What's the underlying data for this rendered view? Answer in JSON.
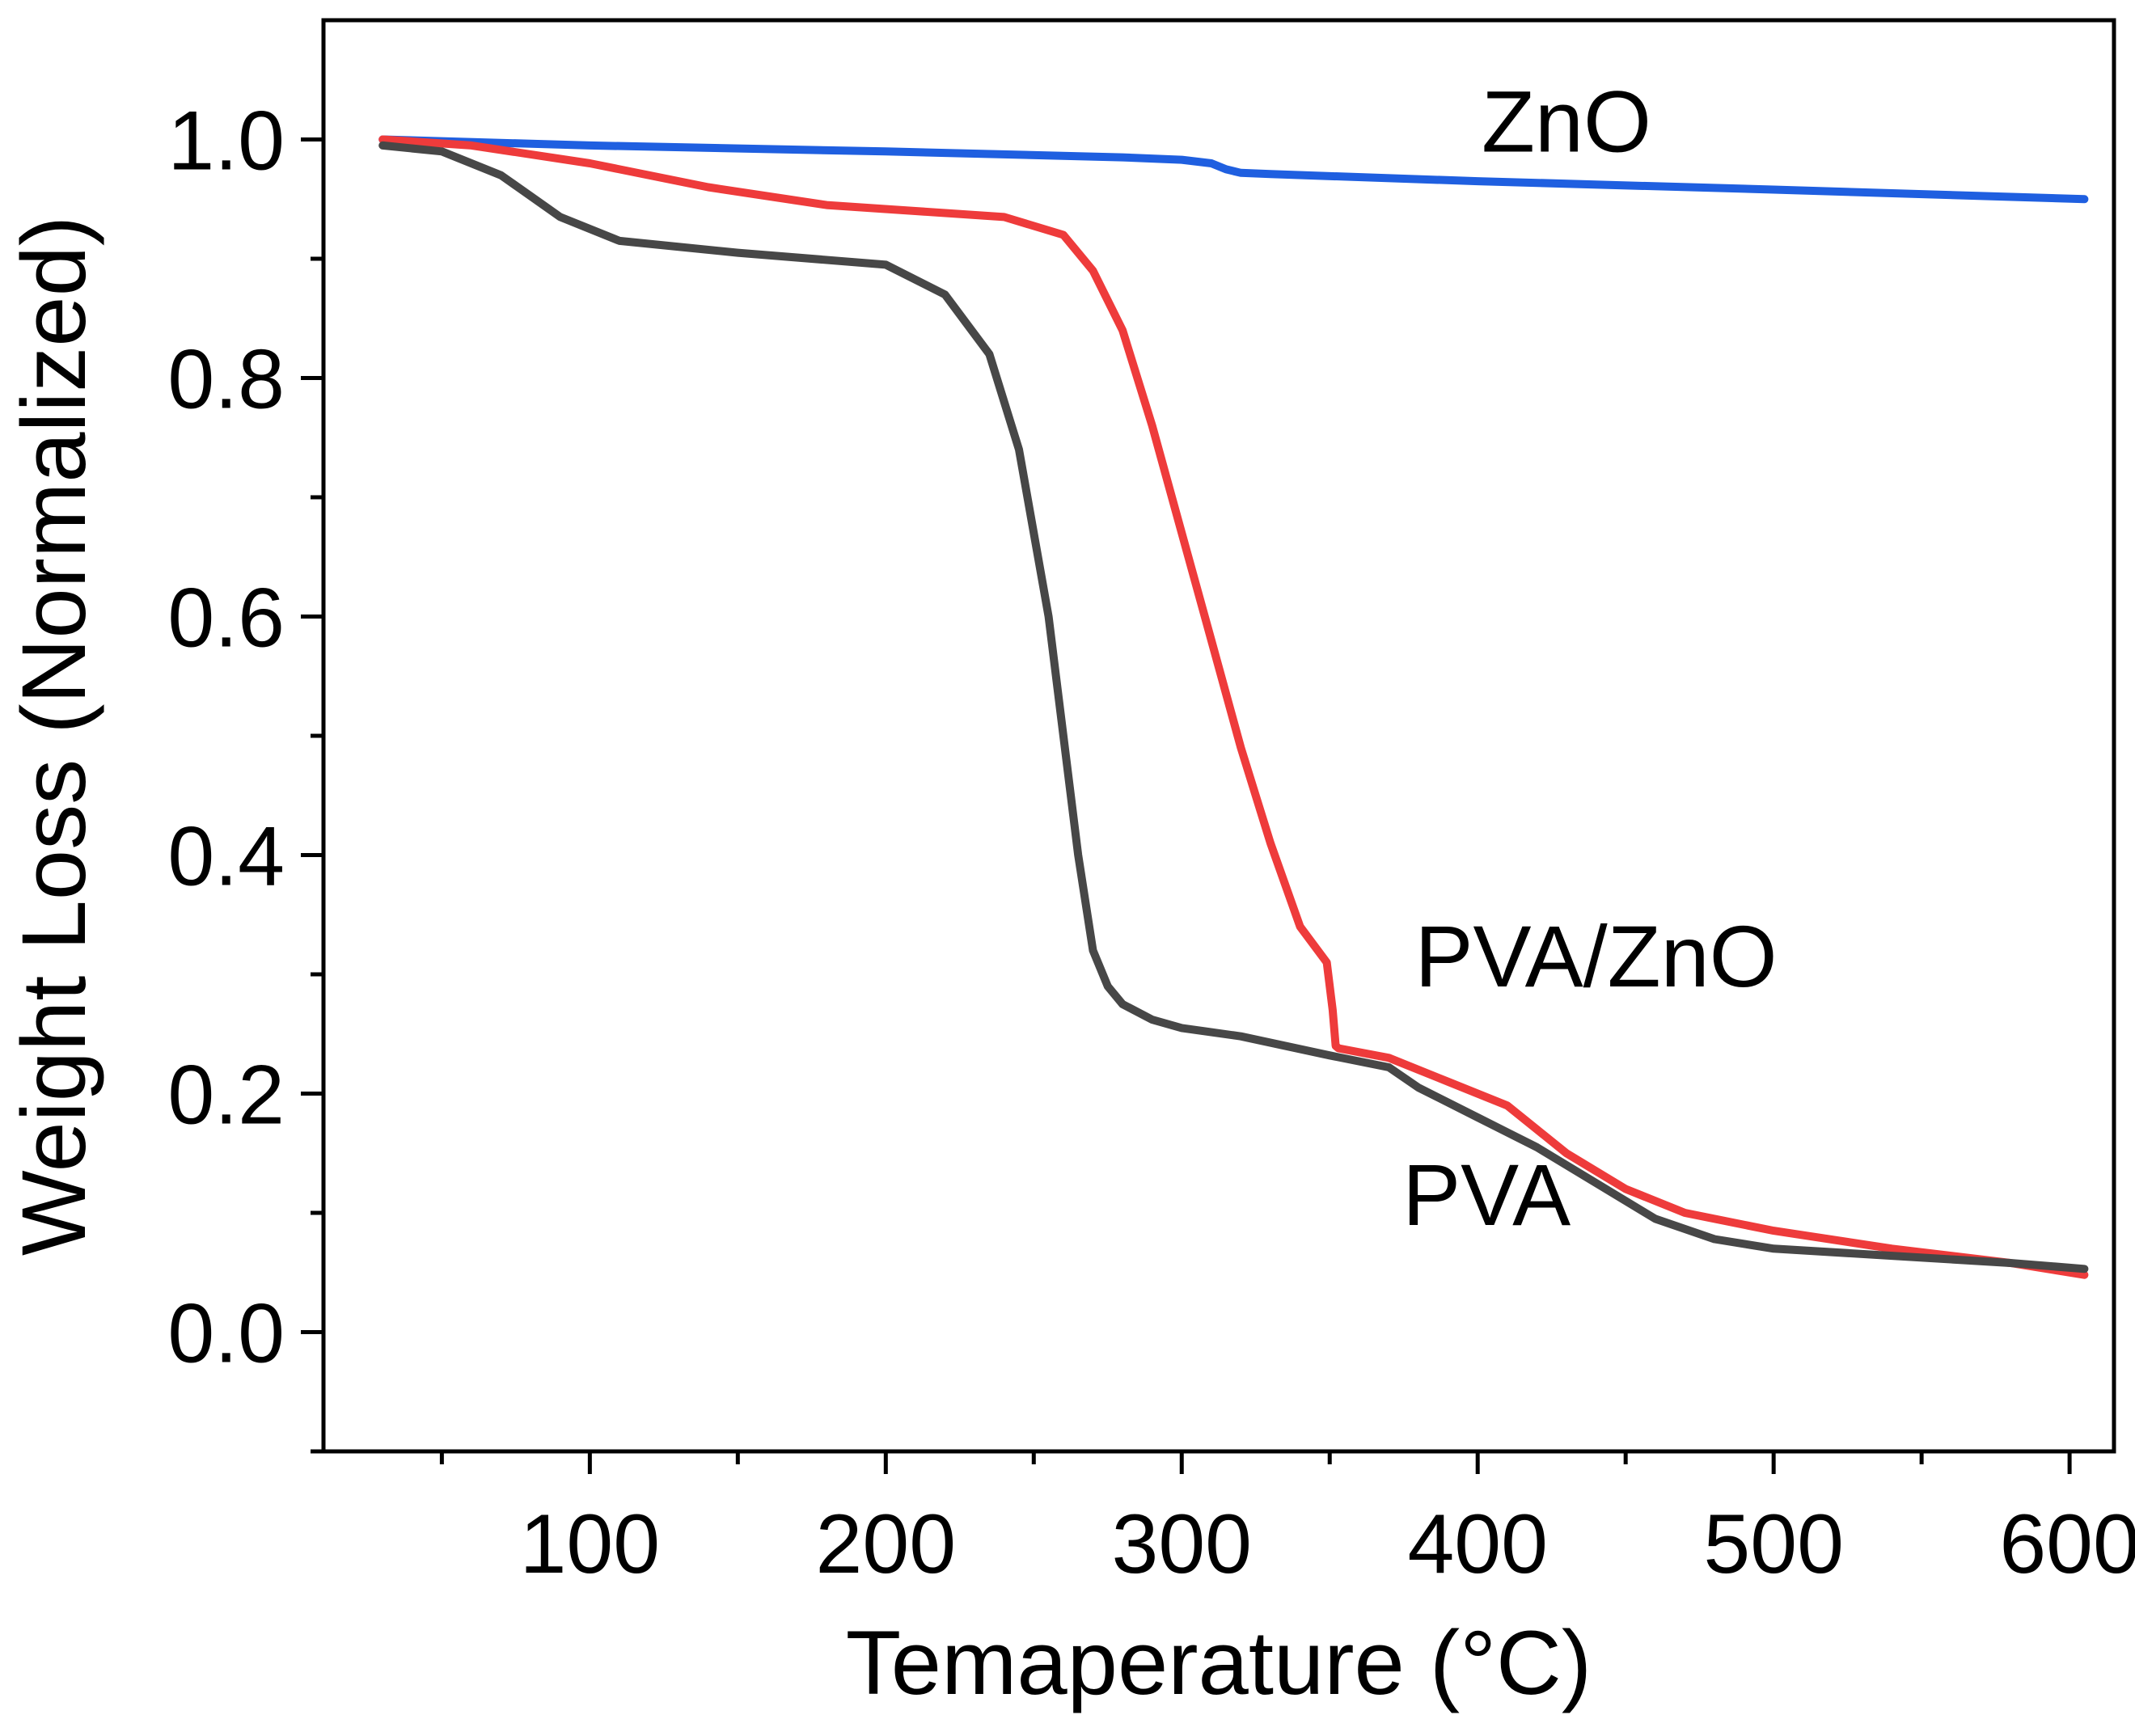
{
  "chart_data": {
    "type": "line",
    "title": "",
    "xlabel": "Temaperature (°C)",
    "ylabel": "Weight Loss (Normalized)",
    "xlim": [
      10,
      615
    ],
    "ylim": [
      -0.1,
      1.1
    ],
    "x_ticks": [
      100,
      200,
      300,
      400,
      500,
      600
    ],
    "x_tick_labels": [
      "100",
      "200",
      "300",
      "400",
      "500",
      "600"
    ],
    "x_minor_ticks": [
      50,
      150,
      250,
      350,
      450,
      550
    ],
    "y_ticks": [
      0.0,
      0.2,
      0.4,
      0.6,
      0.8,
      1.0
    ],
    "y_tick_labels": [
      "0.0",
      "0.2",
      "0.4",
      "0.6",
      "0.8",
      "1.0"
    ],
    "y_minor_ticks": [
      -0.1,
      0.1,
      0.3,
      0.5,
      0.7,
      0.9
    ],
    "grid": false,
    "series": [
      {
        "name": "ZnO",
        "label": "ZnO",
        "color": "#1f5fe0",
        "label_at": [
          430,
          0.99
        ],
        "x": [
          30,
          100,
          200,
          280,
          300,
          310,
          315,
          320,
          330,
          400,
          500,
          605
        ],
        "y": [
          1.0,
          0.995,
          0.99,
          0.985,
          0.983,
          0.98,
          0.975,
          0.972,
          0.971,
          0.965,
          0.958,
          0.95
        ]
      },
      {
        "name": "PVA/ZnO",
        "label": "PVA/ZnO",
        "color": "#ee3b3b",
        "label_at": [
          440,
          0.29
        ],
        "x": [
          30,
          60,
          100,
          140,
          180,
          210,
          240,
          260,
          270,
          280,
          290,
          300,
          310,
          320,
          330,
          340,
          349,
          351,
          352,
          353,
          370,
          390,
          410,
          430,
          450,
          470,
          500,
          540,
          580,
          605
        ],
        "y": [
          1.0,
          0.995,
          0.98,
          0.96,
          0.945,
          0.94,
          0.935,
          0.92,
          0.89,
          0.84,
          0.76,
          0.67,
          0.58,
          0.49,
          0.41,
          0.34,
          0.31,
          0.27,
          0.24,
          0.238,
          0.23,
          0.21,
          0.19,
          0.15,
          0.12,
          0.1,
          0.085,
          0.07,
          0.058,
          0.048
        ]
      },
      {
        "name": "PVA",
        "label": "PVA",
        "color": "#474747",
        "label_at": [
          403,
          0.09
        ],
        "x": [
          30,
          50,
          70,
          90,
          110,
          150,
          200,
          220,
          235,
          245,
          255,
          260,
          265,
          270,
          275,
          280,
          290,
          300,
          320,
          350,
          370,
          380,
          400,
          420,
          440,
          460,
          480,
          500,
          540,
          580,
          605
        ],
        "y": [
          0.995,
          0.99,
          0.97,
          0.935,
          0.915,
          0.905,
          0.895,
          0.87,
          0.82,
          0.74,
          0.6,
          0.5,
          0.4,
          0.32,
          0.29,
          0.275,
          0.262,
          0.255,
          0.248,
          0.232,
          0.222,
          0.205,
          0.18,
          0.155,
          0.125,
          0.095,
          0.078,
          0.07,
          0.064,
          0.058,
          0.053
        ]
      }
    ]
  }
}
